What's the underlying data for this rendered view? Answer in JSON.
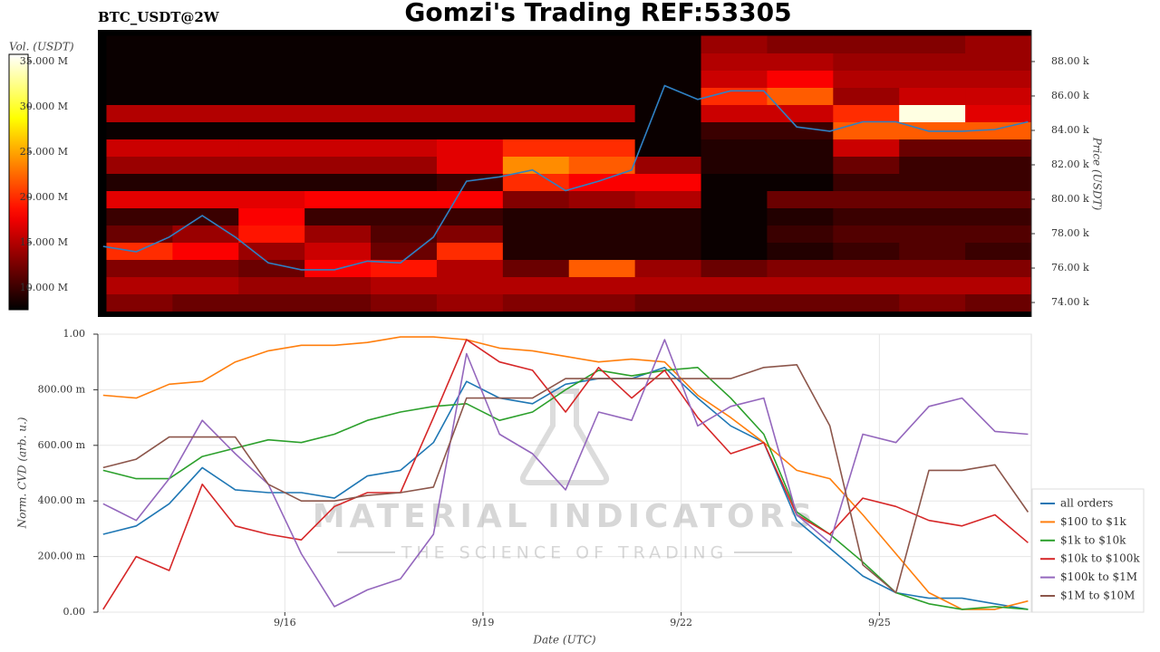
{
  "chart_data": [
    {
      "type": "heatmap",
      "title": "Gomzi's Trading REF:53305",
      "subtitle": "BTC_USDT@2W",
      "ylabel": "Price (USDT)",
      "xlim": [
        13.17,
        27.3
      ],
      "ylim": [
        73160,
        89840
      ],
      "yticks": [
        {
          "value": 74000,
          "label": "74.00 k"
        },
        {
          "value": 76000,
          "label": "76.00 k"
        },
        {
          "value": 78000,
          "label": "78.00 k"
        },
        {
          "value": 80000,
          "label": "80.00 k"
        },
        {
          "value": 82000,
          "label": "82.00 k"
        },
        {
          "value": 84000,
          "label": "84.00 k"
        },
        {
          "value": 86000,
          "label": "86.00 k"
        },
        {
          "value": 88000,
          "label": "88.00 k"
        }
      ],
      "x_bins": [
        13.3,
        14.3,
        15.3,
        16.3,
        17.3,
        18.3,
        19.3,
        20.3,
        21.3,
        22.3,
        23.3,
        24.3,
        25.3,
        26.3,
        27.3
      ],
      "y_bins": [
        73500,
        74500,
        75500,
        76500,
        77500,
        78500,
        79500,
        80500,
        81500,
        82500,
        83500,
        84500,
        85500,
        86500,
        87500,
        88500,
        89500
      ],
      "z": [
        [
          13000000,
          12000000,
          12000000,
          12000000,
          13000000,
          14000000,
          13000000,
          13000000,
          12000000,
          12000000,
          12000000,
          12000000,
          13000000,
          12000000
        ],
        [
          15000000,
          15000000,
          14000000,
          14000000,
          15000000,
          15000000,
          15000000,
          15000000,
          15000000,
          15000000,
          15000000,
          15000000,
          15000000,
          15000000
        ],
        [
          13000000,
          13000000,
          12000000,
          18000000,
          19000000,
          15000000,
          12000000,
          22000000,
          14000000,
          12000000,
          13000000,
          13000000,
          13000000,
          13000000
        ],
        [
          20000000,
          18000000,
          14000000,
          16000000,
          12000000,
          20000000,
          9000000,
          9000000,
          9000000,
          8000000,
          9000000,
          10000000,
          11000000,
          10000000
        ],
        [
          12000000,
          14000000,
          19000000,
          14000000,
          11000000,
          13000000,
          9000000,
          9000000,
          9000000,
          8000000,
          10000000,
          11000000,
          11000000,
          11000000
        ],
        [
          10000000,
          10000000,
          18000000,
          10000000,
          10000000,
          10000000,
          9000000,
          9000000,
          9000000,
          8000000,
          9000000,
          10000000,
          10000000,
          10000000
        ],
        [
          17000000,
          17000000,
          17000000,
          18000000,
          18000000,
          18000000,
          13000000,
          14000000,
          15000000,
          8000000,
          12000000,
          12000000,
          12000000,
          12000000
        ],
        [
          9000000,
          9000000,
          9000000,
          9000000,
          9000000,
          10000000,
          20000000,
          18000000,
          18000000,
          8000000,
          8000000,
          10000000,
          10000000,
          10000000
        ],
        [
          14000000,
          14000000,
          14000000,
          14000000,
          14000000,
          17000000,
          24000000,
          22000000,
          14000000,
          9000000,
          9000000,
          12000000,
          10000000,
          10000000
        ],
        [
          16000000,
          16000000,
          16000000,
          16000000,
          16000000,
          17000000,
          20000000,
          20000000,
          8000000,
          9000000,
          9000000,
          16000000,
          12000000,
          12000000
        ],
        [
          8000000,
          8000000,
          8000000,
          8000000,
          8000000,
          8000000,
          8000000,
          8000000,
          8000000,
          10000000,
          10000000,
          22000000,
          22000000,
          22000000
        ],
        [
          15000000,
          15000000,
          15000000,
          15000000,
          15000000,
          15000000,
          15000000,
          15000000,
          8000000,
          16000000,
          16000000,
          20000000,
          35000000,
          17000000
        ],
        [
          8000000,
          8000000,
          8000000,
          8000000,
          8000000,
          8000000,
          8000000,
          8000000,
          8000000,
          20000000,
          22000000,
          14000000,
          16000000,
          16000000
        ],
        [
          8000000,
          8000000,
          8000000,
          8000000,
          8000000,
          8000000,
          8000000,
          8000000,
          8000000,
          16000000,
          18000000,
          15000000,
          15000000,
          15000000
        ],
        [
          8000000,
          8000000,
          8000000,
          8000000,
          8000000,
          8000000,
          8000000,
          8000000,
          8000000,
          15000000,
          15000000,
          14000000,
          14000000,
          14000000
        ],
        [
          8000000,
          8000000,
          8000000,
          8000000,
          8000000,
          8000000,
          8000000,
          8000000,
          8000000,
          14000000,
          13000000,
          13000000,
          13000000,
          14000000
        ]
      ],
      "colorbar": {
        "label": "Vol. (USDT)",
        "lim": [
          7600000,
          35800000
        ],
        "ticks": [
          {
            "value": 10000000,
            "label": "10.000 M"
          },
          {
            "value": 15000000,
            "label": "15.000 M"
          },
          {
            "value": 20000000,
            "label": "20.000 M"
          },
          {
            "value": 25000000,
            "label": "25.000 M"
          },
          {
            "value": 30000000,
            "label": "30.000 M"
          },
          {
            "value": 35000000,
            "label": "35.000 M"
          }
        ]
      },
      "price_line": {
        "color": "#2f80c4",
        "x": [
          13.25,
          13.75,
          14.25,
          14.75,
          15.25,
          15.75,
          16.25,
          16.75,
          17.25,
          17.75,
          18.25,
          18.75,
          19.25,
          19.75,
          20.25,
          20.75,
          21.25,
          21.75,
          22.25,
          22.75,
          23.25,
          23.75,
          24.25,
          24.75,
          25.25,
          25.75,
          26.25,
          26.75,
          27.25
        ],
        "values": [
          77260,
          76950,
          77800,
          79050,
          77800,
          76300,
          75900,
          75900,
          76400,
          76300,
          77800,
          81050,
          81300,
          81700,
          80500,
          81050,
          81700,
          86600,
          85800,
          86300,
          86300,
          84200,
          83950,
          84500,
          84500,
          83950,
          83950,
          84050,
          84500
        ]
      }
    },
    {
      "type": "line",
      "xlabel": "Date (UTC)",
      "ylabel": "Norm. CVD (arb. u.)",
      "xlim": [
        13.17,
        27.3
      ],
      "xticks": [
        {
          "value": 16,
          "label": "9/16"
        },
        {
          "value": 19,
          "label": "9/19"
        },
        {
          "value": 22,
          "label": "9/22"
        },
        {
          "value": 25,
          "label": "9/25"
        }
      ],
      "ylim": [
        0,
        1
      ],
      "yticks": [
        {
          "value": 0,
          "label": "0.00"
        },
        {
          "value": 0.2,
          "label": "200.00 m"
        },
        {
          "value": 0.4,
          "label": "400.00 m"
        },
        {
          "value": 0.6,
          "label": "600.00 m"
        },
        {
          "value": 0.8,
          "label": "800.00 m"
        },
        {
          "value": 1,
          "label": "1.00"
        }
      ],
      "grid": true,
      "legend": "right",
      "x": [
        13.25,
        13.75,
        14.25,
        14.75,
        15.25,
        15.75,
        16.25,
        16.75,
        17.25,
        17.75,
        18.25,
        18.75,
        19.25,
        19.75,
        20.25,
        20.75,
        21.25,
        21.75,
        22.25,
        22.75,
        23.25,
        23.75,
        24.25,
        24.75,
        25.25,
        25.75,
        26.25,
        26.75,
        27.25
      ],
      "series": [
        {
          "name": "all orders",
          "color": "#1f77b4",
          "values": [
            0.28,
            0.31,
            0.39,
            0.52,
            0.44,
            0.43,
            0.43,
            0.41,
            0.49,
            0.51,
            0.61,
            0.83,
            0.77,
            0.75,
            0.82,
            0.84,
            0.84,
            0.88,
            0.77,
            0.67,
            0.61,
            0.33,
            0.23,
            0.13,
            0.07,
            0.05,
            0.05,
            0.03,
            0.01
          ]
        },
        {
          "name": "$100 to $1k",
          "color": "#ff7f0e",
          "values": [
            0.78,
            0.77,
            0.82,
            0.83,
            0.9,
            0.94,
            0.96,
            0.96,
            0.97,
            0.99,
            0.99,
            0.98,
            0.95,
            0.94,
            0.92,
            0.9,
            0.91,
            0.9,
            0.78,
            0.7,
            0.61,
            0.51,
            0.48,
            0.35,
            0.21,
            0.07,
            0.01,
            0.01,
            0.04
          ]
        },
        {
          "name": "$1k to $10k",
          "color": "#2ca02c",
          "values": [
            0.51,
            0.48,
            0.48,
            0.56,
            0.59,
            0.62,
            0.61,
            0.64,
            0.69,
            0.72,
            0.74,
            0.75,
            0.69,
            0.72,
            0.8,
            0.87,
            0.85,
            0.87,
            0.88,
            0.77,
            0.64,
            0.36,
            0.28,
            0.18,
            0.07,
            0.03,
            0.01,
            0.02,
            0.01
          ]
        },
        {
          "name": "$10k to $100k",
          "color": "#d62728",
          "values": [
            0.01,
            0.2,
            0.15,
            0.46,
            0.31,
            0.28,
            0.26,
            0.38,
            0.43,
            0.43,
            0.7,
            0.98,
            0.9,
            0.87,
            0.72,
            0.88,
            0.77,
            0.87,
            0.7,
            0.57,
            0.61,
            0.35,
            0.28,
            0.41,
            0.38,
            0.33,
            0.31,
            0.35,
            0.25
          ]
        },
        {
          "name": "$100k to $1M",
          "color": "#9467bd",
          "values": [
            0.39,
            0.33,
            0.48,
            0.69,
            0.57,
            0.46,
            0.21,
            0.02,
            0.08,
            0.12,
            0.28,
            0.93,
            0.64,
            0.57,
            0.44,
            0.72,
            0.69,
            0.98,
            0.67,
            0.74,
            0.77,
            0.35,
            0.25,
            0.64,
            0.61,
            0.74,
            0.77,
            0.65,
            0.64
          ]
        },
        {
          "name": "$1M to $10M",
          "color": "#8c564b",
          "values": [
            0.52,
            0.55,
            0.63,
            0.63,
            0.63,
            0.46,
            0.4,
            0.4,
            0.42,
            0.43,
            0.45,
            0.77,
            0.77,
            0.77,
            0.84,
            0.84,
            0.84,
            0.84,
            0.84,
            0.84,
            0.88,
            0.89,
            0.67,
            0.17,
            0.07,
            0.51,
            0.51,
            0.53,
            0.36
          ]
        }
      ]
    }
  ],
  "watermark": {
    "title": "MATERIAL INDICATORS",
    "subtitle": "THE SCIENCE OF TRADING"
  }
}
